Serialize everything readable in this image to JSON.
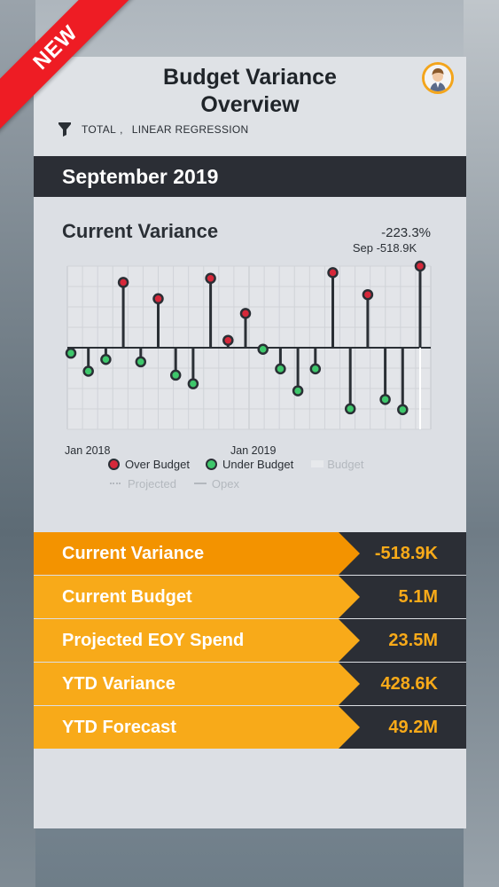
{
  "ribbon": {
    "label": "NEW"
  },
  "header": {
    "title": "Budget Variance\nOverview",
    "filter_total": "TOTAL",
    "filter_separator": ",",
    "filter_method": "LINEAR REGRESSION"
  },
  "month_bar": {
    "label": "September 2019"
  },
  "chart": {
    "title": "Current Variance",
    "percent": "-223.3%",
    "annotation": "Sep -518.9K",
    "x_tick_1": "Jan 2018",
    "x_tick_2": "Jan 2019",
    "legend": {
      "over_budget": "Over Budget",
      "under_budget": "Under Budget",
      "budget": "Budget",
      "projected": "Projected",
      "opex": "Opex"
    }
  },
  "chart_data": {
    "type": "scatter",
    "title": "Current Variance",
    "x_tick_labels": [
      "Jan 2018",
      "Jan 2019"
    ],
    "baseline": 0,
    "ylim": [
      -86,
      100
    ],
    "points": [
      {
        "i": 0,
        "v": -7,
        "status": "under"
      },
      {
        "i": 1,
        "v": -30,
        "status": "under"
      },
      {
        "i": 2,
        "v": -15,
        "status": "under"
      },
      {
        "i": 3,
        "v": 80,
        "status": "over"
      },
      {
        "i": 4,
        "v": -18,
        "status": "under"
      },
      {
        "i": 5,
        "v": 60,
        "status": "over"
      },
      {
        "i": 6,
        "v": -35,
        "status": "under"
      },
      {
        "i": 7,
        "v": -46,
        "status": "under"
      },
      {
        "i": 8,
        "v": 85,
        "status": "over"
      },
      {
        "i": 9,
        "v": 9,
        "status": "over"
      },
      {
        "i": 10,
        "v": 42,
        "status": "over"
      },
      {
        "i": 11,
        "v": -2,
        "status": "under"
      },
      {
        "i": 12,
        "v": -27,
        "status": "under"
      },
      {
        "i": 13,
        "v": -55,
        "status": "under"
      },
      {
        "i": 14,
        "v": -27,
        "status": "under"
      },
      {
        "i": 15,
        "v": 92,
        "status": "over"
      },
      {
        "i": 16,
        "v": -78,
        "status": "under"
      },
      {
        "i": 17,
        "v": 65,
        "status": "over"
      },
      {
        "i": 18,
        "v": -66,
        "status": "under"
      },
      {
        "i": 19,
        "v": -79,
        "status": "under"
      },
      {
        "i": 20,
        "v": 100,
        "status": "over"
      }
    ],
    "highlight_index": 20,
    "colors": {
      "over": "#d6283a",
      "under": "#3ec76b"
    }
  },
  "kpis": [
    {
      "label": "Current Variance",
      "value": "-518.9K",
      "active": true
    },
    {
      "label": "Current Budget",
      "value": "5.1M",
      "active": false
    },
    {
      "label": "Projected EOY Spend",
      "value": "23.5M",
      "active": false
    },
    {
      "label": "YTD Variance",
      "value": "428.6K",
      "active": false
    },
    {
      "label": "YTD Forecast",
      "value": "49.2M",
      "active": false
    }
  ]
}
